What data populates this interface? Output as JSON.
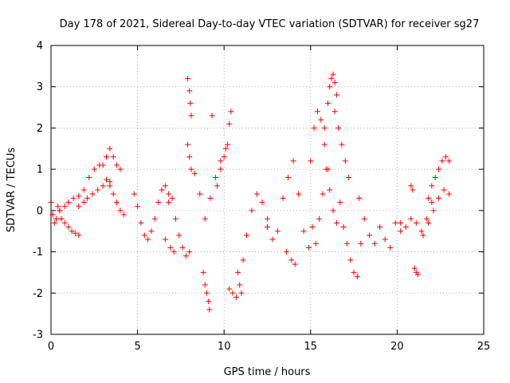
{
  "chart_data": {
    "type": "scatter",
    "title": "Day 178 of 2021, Sidereal Day-to-day VTEC variation (SDTVAR) for receiver sg27",
    "xlabel": "GPS time / hours",
    "ylabel": "SDTVAR / TECUs",
    "xlim": [
      0,
      25
    ],
    "ylim": [
      -3,
      4
    ],
    "xticks": [
      "0",
      "5",
      "10",
      "15",
      "20",
      "25"
    ],
    "yticks": [
      "-3",
      "-2",
      "-1",
      "0",
      "1",
      "2",
      "3",
      "4"
    ],
    "grid": true,
    "marker": "plus",
    "series": [
      {
        "name": "SDTVAR",
        "color": "#ff0000",
        "segments": [
          {
            "x": [
              0.0,
              0.1,
              0.2,
              0.3,
              0.4,
              0.5,
              0.6
            ],
            "y": [
              0.2,
              -0.1,
              -0.3,
              -0.2,
              0.1,
              0.0,
              -0.2
            ]
          },
          {
            "x": [
              0.6,
              0.8,
              1.0,
              1.2,
              1.4,
              1.6
            ],
            "y": [
              -0.2,
              -0.3,
              -0.4,
              -0.5,
              -0.55,
              -0.6
            ]
          },
          {
            "x": [
              0.5,
              0.8,
              1.0,
              1.3,
              1.6,
              1.9,
              2.2,
              2.5,
              2.8
            ],
            "y": [
              0.0,
              0.1,
              0.2,
              0.3,
              0.35,
              0.5,
              0.8,
              1.0,
              1.1
            ]
          },
          {
            "x": [
              1.6,
              1.9,
              2.1,
              2.4,
              2.7,
              3.0,
              3.2,
              3.4
            ],
            "y": [
              0.1,
              0.2,
              0.3,
              0.4,
              0.5,
              0.6,
              0.75,
              0.7
            ]
          },
          {
            "x": [
              3.0,
              3.2,
              3.4,
              3.6,
              3.8,
              4.0
            ],
            "y": [
              1.1,
              1.3,
              1.5,
              1.3,
              1.1,
              1.0
            ]
          },
          {
            "x": [
              3.4,
              3.6,
              3.8,
              4.0,
              4.2
            ],
            "y": [
              0.6,
              0.4,
              0.2,
              0.0,
              -0.1
            ]
          },
          {
            "x": [
              4.8,
              5.0,
              5.2,
              5.4,
              5.6,
              5.8,
              6.0,
              6.2,
              6.4,
              6.6,
              6.8
            ],
            "y": [
              0.4,
              0.1,
              -0.3,
              -0.6,
              -0.7,
              -0.5,
              -0.2,
              0.2,
              0.5,
              0.6,
              0.4
            ]
          },
          {
            "x": [
              6.8,
              7.0,
              7.2,
              7.4,
              7.6,
              7.8,
              8.0
            ],
            "y": [
              0.2,
              0.3,
              -0.2,
              -0.6,
              -0.9,
              -1.1,
              -1.0
            ]
          },
          {
            "x": [
              6.6,
              6.9,
              7.1
            ],
            "y": [
              -0.7,
              -0.9,
              -1.0
            ]
          },
          {
            "x": [
              7.9,
              8.0,
              8.05,
              8.1
            ],
            "y": [
              3.2,
              2.9,
              2.6,
              2.3
            ]
          },
          {
            "x": [
              7.9,
              8.0,
              8.1
            ],
            "y": [
              1.6,
              1.3,
              1.0
            ]
          },
          {
            "x": [
              8.3,
              8.6,
              8.9,
              9.2,
              9.5,
              9.8,
              10.1
            ],
            "y": [
              0.9,
              0.4,
              -0.2,
              0.3,
              0.8,
              1.2,
              1.5
            ]
          },
          {
            "x": [
              8.8,
              8.9,
              9.0,
              9.1,
              9.15
            ],
            "y": [
              -1.5,
              -1.8,
              -2.0,
              -2.2,
              -2.4
            ]
          },
          {
            "x": [
              9.6,
              9.8,
              10.0,
              10.2,
              10.3,
              10.4
            ],
            "y": [
              0.6,
              1.0,
              1.3,
              1.6,
              2.1,
              2.4
            ]
          },
          {
            "x": [
              9.3
            ],
            "y": [
              2.3
            ]
          },
          {
            "x": [
              10.8,
              10.9,
              11.0,
              11.1,
              11.3,
              11.6,
              11.9,
              12.2,
              12.5
            ],
            "y": [
              -1.5,
              -1.8,
              -2.0,
              -1.2,
              -0.6,
              0.0,
              0.4,
              0.2,
              -0.2
            ]
          },
          {
            "x": [
              10.3,
              10.5,
              10.7
            ],
            "y": [
              -1.9,
              -2.0,
              -2.1
            ]
          },
          {
            "x": [
              12.5,
              12.8,
              13.1,
              13.4,
              13.7,
              14.0,
              14.3,
              14.6,
              14.9
            ],
            "y": [
              -0.4,
              -0.7,
              -0.5,
              0.3,
              0.8,
              1.2,
              0.4,
              -0.5,
              -0.9
            ]
          },
          {
            "x": [
              13.6,
              13.9,
              14.1
            ],
            "y": [
              -1.0,
              -1.2,
              -1.3
            ]
          },
          {
            "x": [
              15.0,
              15.2,
              15.4,
              15.6,
              15.8,
              16.0
            ],
            "y": [
              1.2,
              2.0,
              2.4,
              2.2,
              1.6,
              1.0
            ]
          },
          {
            "x": [
              15.8,
              16.0,
              16.1,
              16.2,
              16.3,
              16.4,
              16.5
            ],
            "y": [
              2.0,
              2.6,
              3.0,
              3.2,
              3.3,
              3.1,
              2.8
            ]
          },
          {
            "x": [
              16.4,
              16.6,
              16.8,
              17.0,
              17.2
            ],
            "y": [
              2.4,
              2.0,
              1.6,
              1.2,
              0.8
            ]
          },
          {
            "x": [
              15.1,
              15.3,
              15.5,
              15.7,
              15.9,
              16.1,
              16.3,
              16.5,
              16.7
            ],
            "y": [
              -0.4,
              -0.8,
              -0.2,
              0.4,
              1.0,
              0.5,
              0.0,
              -0.3,
              0.2
            ]
          },
          {
            "x": [
              16.9,
              17.1,
              17.3,
              17.5,
              17.7,
              17.9
            ],
            "y": [
              -0.4,
              -0.8,
              -1.2,
              -1.5,
              -1.6,
              -0.8
            ]
          },
          {
            "x": [
              17.8,
              18.1,
              18.4,
              18.7,
              19.0,
              19.3,
              19.6,
              19.9,
              20.2
            ],
            "y": [
              0.3,
              -0.2,
              -0.6,
              -0.8,
              -0.4,
              -0.7,
              -0.9,
              -0.3,
              -0.5
            ]
          },
          {
            "x": [
              20.2,
              20.5,
              20.8,
              21.1,
              21.4,
              21.7,
              22.0
            ],
            "y": [
              -0.3,
              -0.4,
              -0.2,
              -0.3,
              -0.5,
              -0.2,
              0.2
            ]
          },
          {
            "x": [
              21.0,
              21.1,
              21.2
            ],
            "y": [
              -1.4,
              -1.5,
              -1.55
            ]
          },
          {
            "x": [
              20.8,
              20.9
            ],
            "y": [
              0.6,
              0.5
            ]
          },
          {
            "x": [
              21.8,
              22.0,
              22.2,
              22.4,
              22.6,
              22.8,
              23.0
            ],
            "y": [
              0.3,
              0.6,
              0.8,
              1.0,
              1.2,
              1.3,
              1.2
            ]
          },
          {
            "x": [
              21.5,
              21.8,
              22.1,
              22.4,
              22.7,
              23.0
            ],
            "y": [
              -0.6,
              -0.3,
              0.0,
              0.3,
              0.5,
              0.4
            ]
          }
        ]
      }
    ]
  }
}
